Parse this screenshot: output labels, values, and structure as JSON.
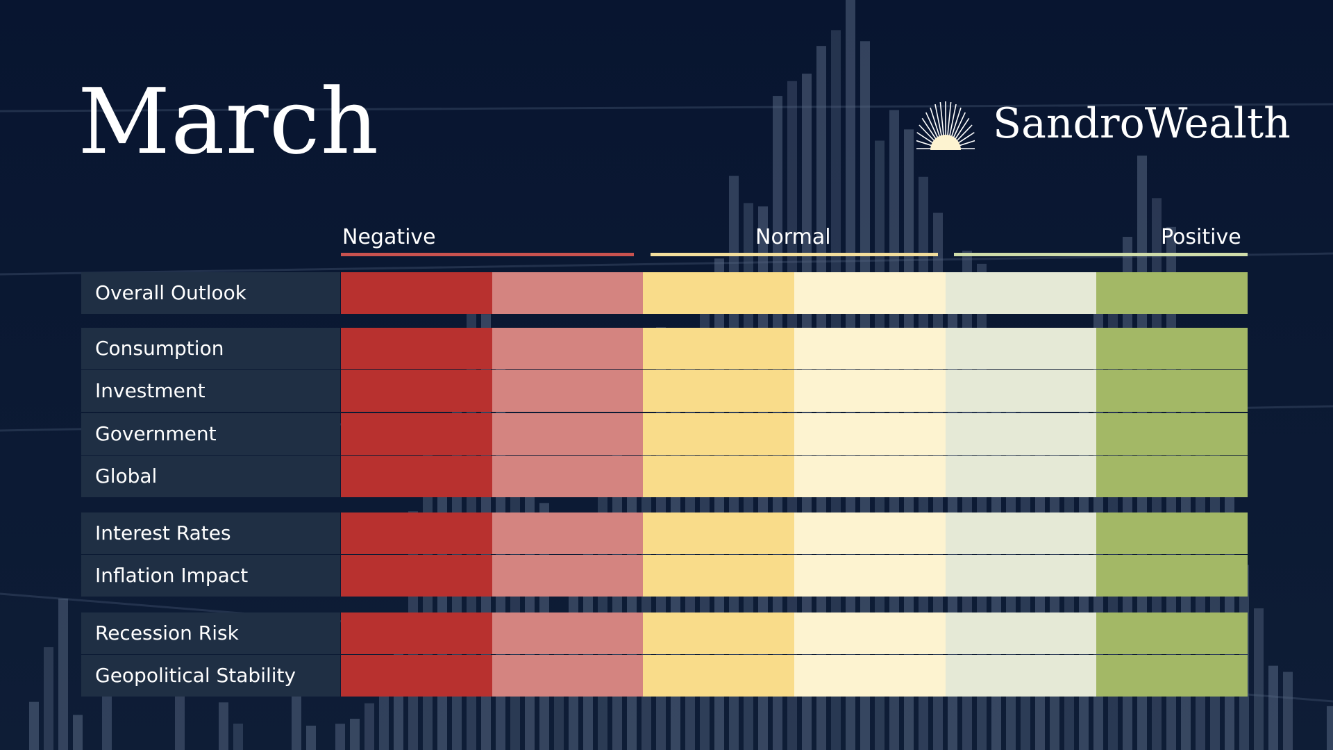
{
  "title": "March",
  "brand": {
    "name": "SandroWealth",
    "logo_icon": "sunrise-rays-icon"
  },
  "chart_data": {
    "type": "heatmap",
    "title": "March",
    "scale": {
      "labels": [
        "Negative",
        "Normal",
        "Positive"
      ],
      "levels": 6,
      "colors": [
        "#b8312f",
        "#d48480",
        "#f9dc8a",
        "#fdf3d0",
        "#e5e9d6",
        "#a3b866"
      ],
      "group_line_colors": [
        "#c9524f",
        "#f3de9c",
        "#cfdcaa"
      ]
    },
    "groups": [
      {
        "rows": [
          "Overall Outlook"
        ]
      },
      {
        "rows": [
          "Consumption",
          "Investment",
          "Government",
          "Global"
        ]
      },
      {
        "rows": [
          "Interest Rates",
          "Inflation Impact"
        ]
      },
      {
        "rows": [
          "Recession Risk",
          "Geopolitical Stability"
        ]
      }
    ]
  }
}
